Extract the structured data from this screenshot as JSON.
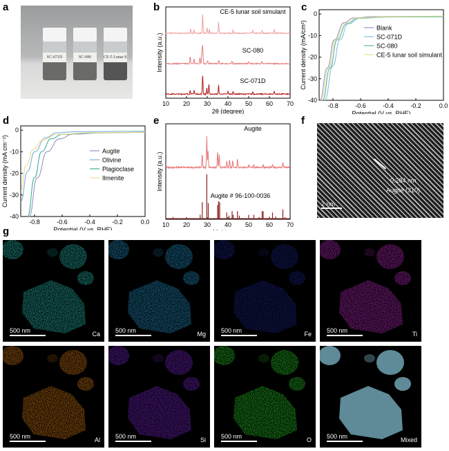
{
  "panels": {
    "a": "a",
    "b": "b",
    "c": "c",
    "d": "d",
    "e": "e",
    "f": "f",
    "g": "g"
  },
  "photo": {
    "vial_labels": [
      "SC-071D",
      "SC-080",
      "CE-5 Lunar Simulant"
    ]
  },
  "hrtem": {
    "spacing": "0.284 nm",
    "plane": "Augite (310)",
    "scale_bar": "2 nm"
  },
  "eds": {
    "scale_bar": "500 nm",
    "elements": [
      {
        "name": "Ca",
        "color": "#2fd6c8"
      },
      {
        "name": "Mg",
        "color": "#2aa6e0"
      },
      {
        "name": "Fe",
        "color": "#2a3de0"
      },
      {
        "name": "Ti",
        "color": "#d030d8"
      },
      {
        "name": "Al",
        "color": "#f08a1a"
      },
      {
        "name": "Si",
        "color": "#8a2ae8"
      },
      {
        "name": "O",
        "color": "#2ee02a"
      },
      {
        "name": "Mixed",
        "color": "#6a9aa8"
      }
    ]
  },
  "chart_data": [
    {
      "id": "b",
      "type": "line",
      "xlabel": "2θ (degree)",
      "ylabel": "Intensity (a.u.)",
      "xlim": [
        10,
        70
      ],
      "xticks": [
        10,
        20,
        30,
        40,
        50,
        60,
        70
      ],
      "series": [
        {
          "name": "CE-5 lunar soil simulant",
          "color": "#f2a0a0",
          "peaks": [
            [
              27.8,
              1
            ],
            [
              35.5,
              0.55
            ],
            [
              22,
              0.2
            ],
            [
              23.7,
              0.2
            ],
            [
              30,
              0.25
            ],
            [
              31,
              0.2
            ],
            [
              42.5,
              0.15
            ],
            [
              52,
              0.15
            ],
            [
              56.5,
              0.15
            ],
            [
              62.3,
              0.2
            ]
          ]
        },
        {
          "name": "SC-080",
          "color": "#e67a7a",
          "peaks": [
            [
              27.8,
              1
            ],
            [
              27.4,
              0.6
            ],
            [
              21.8,
              0.35
            ],
            [
              23.6,
              0.25
            ],
            [
              26.5,
              0.3
            ],
            [
              30.2,
              0.15
            ],
            [
              35.6,
              0.15
            ],
            [
              42,
              0.1
            ],
            [
              50,
              0.1
            ],
            [
              56.3,
              0.12
            ]
          ]
        },
        {
          "name": "SC-071D",
          "color": "#b01818",
          "peaks": [
            [
              27.8,
              1
            ],
            [
              30.8,
              0.5
            ],
            [
              35.5,
              0.45
            ],
            [
              29.8,
              0.3
            ],
            [
              21.8,
              0.2
            ],
            [
              23.7,
              0.2
            ],
            [
              40,
              0.15
            ],
            [
              42.5,
              0.15
            ],
            [
              52,
              0.12
            ],
            [
              62.3,
              0.15
            ]
          ]
        }
      ]
    },
    {
      "id": "c",
      "type": "line",
      "xlabel": "Potential (V vs. RHE)",
      "ylabel": "Current density (mA/cm²)",
      "xlim": [
        -0.9,
        0
      ],
      "ylim": [
        -40,
        2
      ],
      "xticks": [
        -0.8,
        -0.6,
        -0.4,
        -0.2,
        0.0
      ],
      "yticks": [
        0,
        -10,
        -20,
        -30,
        -40
      ],
      "legend": "center-right",
      "series": [
        {
          "name": "Blank",
          "color": "#9a90c4",
          "points": [
            [
              -0.895,
              -40
            ],
            [
              -0.84,
              -25
            ],
            [
              -0.79,
              -12
            ],
            [
              -0.72,
              -4
            ],
            [
              -0.65,
              -1.8
            ],
            [
              -0.5,
              -1.2
            ],
            [
              0,
              -1
            ]
          ]
        },
        {
          "name": "SC-071D",
          "color": "#86c0dc",
          "points": [
            [
              -0.86,
              -40
            ],
            [
              -0.8,
              -24
            ],
            [
              -0.75,
              -12
            ],
            [
              -0.69,
              -4.5
            ],
            [
              -0.6,
              -1.8
            ],
            [
              -0.4,
              -1.3
            ],
            [
              0,
              -1.1
            ]
          ]
        },
        {
          "name": "SC-080",
          "color": "#52b8a8",
          "points": [
            [
              -0.875,
              -40
            ],
            [
              -0.82,
              -25
            ],
            [
              -0.77,
              -12
            ],
            [
              -0.7,
              -4.5
            ],
            [
              -0.62,
              -2
            ],
            [
              -0.4,
              -1.4
            ],
            [
              0,
              -1.3
            ]
          ]
        },
        {
          "name": "CE-5 lunar soil simulant",
          "color": "#eee08a",
          "points": [
            [
              -0.885,
              -40
            ],
            [
              -0.83,
              -25
            ],
            [
              -0.78,
              -12
            ],
            [
              -0.71,
              -4.2
            ],
            [
              -0.63,
              -1.8
            ],
            [
              -0.4,
              -1.2
            ],
            [
              0,
              -1
            ]
          ]
        }
      ]
    },
    {
      "id": "d",
      "type": "line",
      "xlabel": "Potential (V vs. RHE)",
      "ylabel": "Current density (mA cm⁻²)",
      "xlim": [
        -0.9,
        0
      ],
      "ylim": [
        -40,
        2
      ],
      "xticks": [
        -0.8,
        -0.6,
        -0.4,
        -0.2,
        0.0
      ],
      "yticks": [
        0,
        -10,
        -20,
        -30,
        -40
      ],
      "legend": "center-right",
      "series": [
        {
          "name": "Augite",
          "color": "#9a90c4",
          "points": [
            [
              -0.84,
              -40
            ],
            [
              -0.78,
              -22
            ],
            [
              -0.71,
              -10
            ],
            [
              -0.62,
              -4
            ],
            [
              -0.52,
              -1.8
            ],
            [
              -0.3,
              -1.2
            ],
            [
              0,
              -1
            ]
          ]
        },
        {
          "name": "Olivine",
          "color": "#7ab0d8",
          "points": [
            [
              -0.9,
              -33
            ],
            [
              -0.85,
              -19
            ],
            [
              -0.8,
              -10
            ],
            [
              -0.72,
              -3.5
            ],
            [
              -0.64,
              -1.2
            ],
            [
              -0.5,
              -0.7
            ],
            [
              0,
              -0.5
            ]
          ]
        },
        {
          "name": "Plagioclase",
          "color": "#3fb29e",
          "points": [
            [
              -0.85,
              -40
            ],
            [
              -0.8,
              -22
            ],
            [
              -0.75,
              -10
            ],
            [
              -0.68,
              -4
            ],
            [
              -0.6,
              -2
            ],
            [
              -0.4,
              -1.3
            ],
            [
              0,
              -1
            ]
          ]
        },
        {
          "name": "Ilmenite",
          "color": "#f0d88a",
          "points": [
            [
              -0.9,
              -28
            ],
            [
              -0.86,
              -16
            ],
            [
              -0.81,
              -9
            ],
            [
              -0.74,
              -4.5
            ],
            [
              -0.64,
              -2
            ],
            [
              -0.4,
              -1.2
            ],
            [
              0,
              -1
            ]
          ]
        }
      ]
    },
    {
      "id": "e",
      "type": "line",
      "xlabel": "2θ (degree)",
      "ylabel": "Intensity (a.u.)",
      "xlim": [
        10,
        70
      ],
      "xticks": [
        10,
        20,
        30,
        40,
        50,
        60,
        70
      ],
      "series": [
        {
          "name": "Augite",
          "color": "#e87878",
          "peaks": [
            [
              29.8,
              1
            ],
            [
              27.6,
              0.45
            ],
            [
              30.4,
              0.55
            ],
            [
              35,
              0.5
            ],
            [
              35.8,
              0.4
            ],
            [
              39.5,
              0.22
            ],
            [
              40.8,
              0.25
            ],
            [
              42.3,
              0.25
            ],
            [
              44.6,
              0.28
            ],
            [
              50,
              0.08
            ],
            [
              52.5,
              0.1
            ],
            [
              57,
              0.1
            ],
            [
              61.5,
              0.08
            ],
            [
              66.5,
              0.18
            ]
          ]
        },
        {
          "name": "Augite # 96-100-0036",
          "type": "stick",
          "color": "#8b2020",
          "peaks": [
            [
              13.5,
              0.05
            ],
            [
              20,
              0.05
            ],
            [
              26.6,
              0.1
            ],
            [
              27.6,
              0.38
            ],
            [
              29.8,
              1
            ],
            [
              30.5,
              0.36
            ],
            [
              35,
              0.32
            ],
            [
              35.5,
              0.4
            ],
            [
              36,
              0.38
            ],
            [
              39.4,
              0.15
            ],
            [
              40.5,
              0.08
            ],
            [
              42,
              0.18
            ],
            [
              42.5,
              0.1
            ],
            [
              44.6,
              0.18
            ],
            [
              45.5,
              0.08
            ],
            [
              50,
              0.1
            ],
            [
              52.5,
              0.1
            ],
            [
              55,
              0.05
            ],
            [
              56.5,
              0.18
            ],
            [
              57,
              0.18
            ],
            [
              60,
              0.06
            ],
            [
              61.5,
              0.15
            ],
            [
              63,
              0.06
            ],
            [
              66.5,
              0.22
            ],
            [
              67.5,
              0.05
            ]
          ]
        }
      ]
    }
  ]
}
